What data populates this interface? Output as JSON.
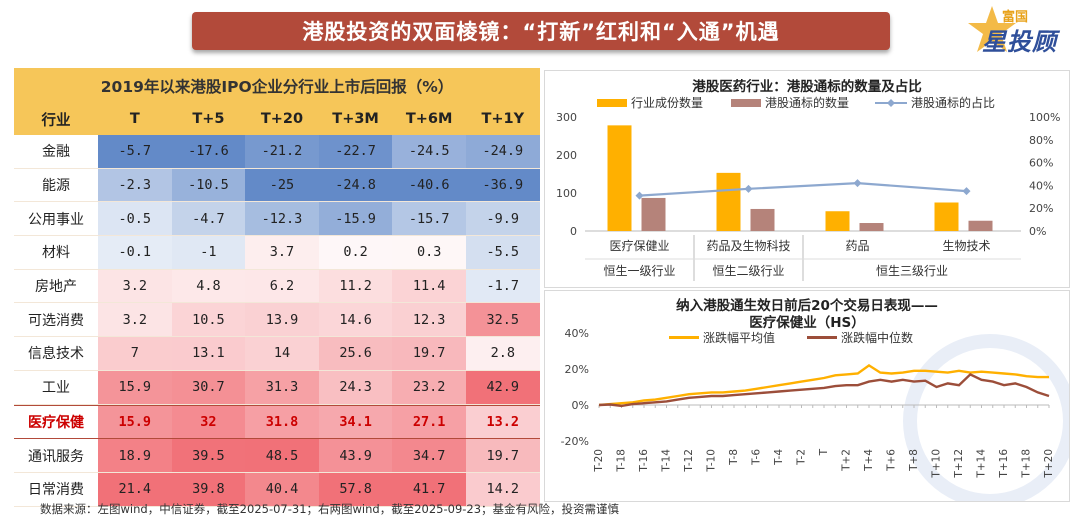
{
  "header": {
    "title": "港股投资的双面棱镜：“打新”红利和“入通”机遇",
    "logo_top": "富国",
    "logo_main": "星投顾"
  },
  "colors": {
    "banner": "#b24a3a",
    "gold": "#f6c659",
    "orange": "#ffb000",
    "brown": "#b5837a",
    "steel": "#8da8cf",
    "line_brown": "#9c4e3a"
  },
  "footer": {
    "source": "数据来源：左图wind，中信证券，截至2025-07-31；右两图wind，截至2025-09-23；基金有风险，投资需谨慎"
  },
  "chart_data": [
    {
      "type": "table",
      "title": "2019年以来港股IPO企业分行业上市后回报（%）",
      "columns": [
        "行业",
        "T",
        "T+5",
        "T+20",
        "T+3M",
        "T+6M",
        "T+1Y"
      ],
      "rows": [
        [
          "金融",
          "-5.7",
          "-17.6",
          "-21.2",
          "-22.7",
          "-24.5",
          "-24.9"
        ],
        [
          "能源",
          "-2.3",
          "-10.5",
          "-25",
          "-24.8",
          "-40.6",
          "-36.9"
        ],
        [
          "公用事业",
          "-0.5",
          "-4.7",
          "-12.3",
          "-15.9",
          "-15.7",
          "-9.9"
        ],
        [
          "材料",
          "-0.1",
          "-1",
          "3.7",
          "0.2",
          "0.3",
          "-5.5"
        ],
        [
          "房地产",
          "3.2",
          "4.8",
          "6.2",
          "11.2",
          "11.4",
          "-1.7"
        ],
        [
          "可选消费",
          "3.2",
          "10.5",
          "13.9",
          "14.6",
          "12.3",
          "32.5"
        ],
        [
          "信息技术",
          "7",
          "13.1",
          "14",
          "25.6",
          "19.7",
          "2.8"
        ],
        [
          "工业",
          "15.9",
          "30.7",
          "31.3",
          "24.3",
          "23.2",
          "42.9"
        ],
        [
          "医疗保健",
          "15.9",
          "32",
          "31.8",
          "34.1",
          "27.1",
          "13.2"
        ],
        [
          "通讯服务",
          "18.9",
          "39.5",
          "48.5",
          "43.9",
          "34.7",
          "19.7"
        ],
        [
          "日常消费",
          "21.4",
          "39.8",
          "40.4",
          "57.8",
          "41.7",
          "14.2"
        ]
      ],
      "highlight_row": "医疗保健"
    },
    {
      "type": "bar",
      "title": "港股医药行业：港股通标的数量及占比",
      "categories": [
        "医疗保健业",
        "药品及生物科技",
        "药品",
        "生物技术"
      ],
      "group_labels": [
        "恒生一级行业",
        "恒生二级行业",
        "恒生三级行业"
      ],
      "series": [
        {
          "name": "行业成份数量",
          "values": [
            278,
            153,
            52,
            75
          ]
        },
        {
          "name": "港股通标的数量",
          "values": [
            87,
            58,
            21,
            27
          ]
        },
        {
          "name": "港股通标的占比",
          "values": [
            31,
            37,
            42,
            35
          ],
          "axis": "right",
          "kind": "line"
        }
      ],
      "ylim": [
        0,
        300
      ],
      "y2lim": [
        0,
        100
      ],
      "yticks": [
        "0",
        "100",
        "200",
        "300"
      ],
      "y2ticks": [
        "0%",
        "20%",
        "40%",
        "60%",
        "80%",
        "100%"
      ]
    },
    {
      "type": "line",
      "title_line1": "纳入港股通生效日前后20个交易日表现——",
      "title_line2": "医疗保健业（HS）",
      "x": [
        "T-20",
        "T-19",
        "T-18",
        "T-17",
        "T-16",
        "T-15",
        "T-14",
        "T-13",
        "T-12",
        "T-11",
        "T-10",
        "T-9",
        "T-8",
        "T-7",
        "T-6",
        "T-5",
        "T-4",
        "T-3",
        "T-2",
        "T-1",
        "T",
        "T+1",
        "T+2",
        "T+3",
        "T+4",
        "T+5",
        "T+6",
        "T+7",
        "T+8",
        "T+9",
        "T+10",
        "T+11",
        "T+12",
        "T+13",
        "T+14",
        "T+15",
        "T+16",
        "T+17",
        "T+18",
        "T+19",
        "T+20"
      ],
      "xticks": [
        "T-20",
        "T-18",
        "T-16",
        "T-14",
        "T-12",
        "T-10",
        "T-8",
        "T-6",
        "T-4",
        "T-2",
        "T",
        "T+2",
        "T+4",
        "T+6",
        "T+8",
        "T+10",
        "T+12",
        "T+14",
        "T+16",
        "T+18",
        "T+20"
      ],
      "series": [
        {
          "name": "涨跌幅平均值",
          "values": [
            0,
            0.5,
            1,
            1.5,
            2.5,
            3,
            4,
            5,
            6,
            6.5,
            7,
            7,
            7.5,
            8,
            9,
            10,
            11,
            12,
            13,
            14,
            15,
            16.5,
            17,
            17.5,
            22,
            18,
            17.5,
            18,
            19,
            19,
            18.5,
            18,
            19,
            18,
            18.5,
            18,
            17.5,
            17,
            16,
            15.5,
            15.5
          ]
        },
        {
          "name": "涨跌幅中位数",
          "values": [
            0,
            0.3,
            -0.5,
            0.5,
            1,
            1.5,
            2,
            3,
            4,
            4.5,
            5,
            5,
            5.5,
            6,
            6.5,
            7,
            7.5,
            8,
            8.5,
            9,
            9.5,
            10.5,
            11,
            11,
            13,
            14,
            13,
            14,
            13,
            13.5,
            10,
            12,
            11,
            17,
            14,
            13,
            11,
            12,
            10,
            7,
            5
          ]
        }
      ],
      "ylim": [
        -20,
        40
      ],
      "yticks": [
        "-20%",
        "0%",
        "20%",
        "40%"
      ]
    }
  ]
}
